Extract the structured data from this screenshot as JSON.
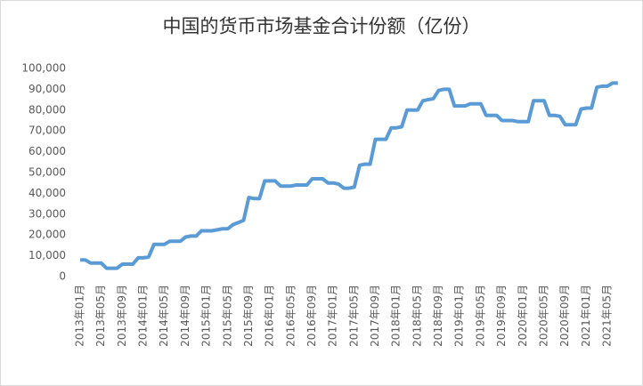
{
  "chart_data": {
    "type": "line",
    "title": "中国的货币市场基金合计份额（亿份）",
    "categories": [
      "2013年01月",
      null,
      null,
      null,
      "2013年05月",
      null,
      null,
      null,
      "2013年09月",
      null,
      null,
      null,
      "2014年01月",
      null,
      null,
      null,
      "2014年05月",
      null,
      null,
      null,
      "2014年09月",
      null,
      null,
      null,
      "2015年01月",
      null,
      null,
      null,
      "2015年05月",
      null,
      null,
      null,
      "2015年09月",
      null,
      null,
      null,
      "2016年01月",
      null,
      null,
      null,
      "2016年05月",
      null,
      null,
      null,
      "2016年09月",
      null,
      null,
      null,
      "2017年01月",
      null,
      null,
      null,
      "2017年05月",
      null,
      null,
      null,
      "2017年09月",
      null,
      null,
      null,
      "2018年01月",
      null,
      null,
      null,
      "2018年05月",
      null,
      null,
      null,
      "2018年09月",
      null,
      null,
      null,
      "2019年01月",
      null,
      null,
      null,
      "2019年05月",
      null,
      null,
      null,
      "2019年09月",
      null,
      null,
      null,
      "2020年01月",
      null,
      null,
      null,
      "2020年05月",
      null,
      null,
      null,
      "2020年09月",
      null,
      null,
      null,
      "2021年01月",
      null,
      null,
      null,
      "2021年05月",
      null,
      null
    ],
    "values": [
      8000,
      8000,
      6500,
      6500,
      6500,
      4000,
      4000,
      4000,
      6000,
      6000,
      6000,
      9000,
      9000,
      9500,
      15500,
      15500,
      15500,
      17000,
      17000,
      17000,
      19000,
      19500,
      19500,
      22000,
      22000,
      22000,
      22500,
      23000,
      23000,
      25000,
      26000,
      27000,
      38000,
      37500,
      37500,
      46000,
      46000,
      46000,
      43500,
      43500,
      43500,
      44000,
      44000,
      44000,
      47000,
      47000,
      47000,
      45000,
      45000,
      44500,
      42500,
      42500,
      43000,
      53500,
      54000,
      54000,
      66000,
      66000,
      66000,
      71500,
      71500,
      72000,
      80000,
      80000,
      80000,
      84500,
      85000,
      85500,
      89500,
      90000,
      90000,
      82000,
      82000,
      82000,
      83000,
      83000,
      83000,
      77500,
      77500,
      77500,
      75000,
      75000,
      75000,
      74500,
      74500,
      74500,
      84500,
      84500,
      84500,
      77500,
      77500,
      77000,
      73000,
      73000,
      73000,
      80500,
      81000,
      81000,
      91000,
      91500,
      91500,
      93000,
      93000
    ],
    "color": "#5b9bd5",
    "ylim": [
      0,
      100000
    ],
    "yticks": [
      0,
      {
        "value": 10000,
        "label": "10,000"
      },
      {
        "value": 20000,
        "label": "20,000"
      },
      {
        "value": 30000,
        "label": "30,000"
      },
      {
        "value": 40000,
        "label": "40,000"
      },
      {
        "value": 50000,
        "label": "50,000"
      },
      {
        "value": 60000,
        "label": "60,000"
      },
      {
        "value": 70000,
        "label": "70,000"
      },
      {
        "value": 80000,
        "label": "80,000"
      },
      {
        "value": 90000,
        "label": "90,000"
      },
      {
        "value": 100000,
        "label": "100,000"
      }
    ],
    "grid": false
  }
}
